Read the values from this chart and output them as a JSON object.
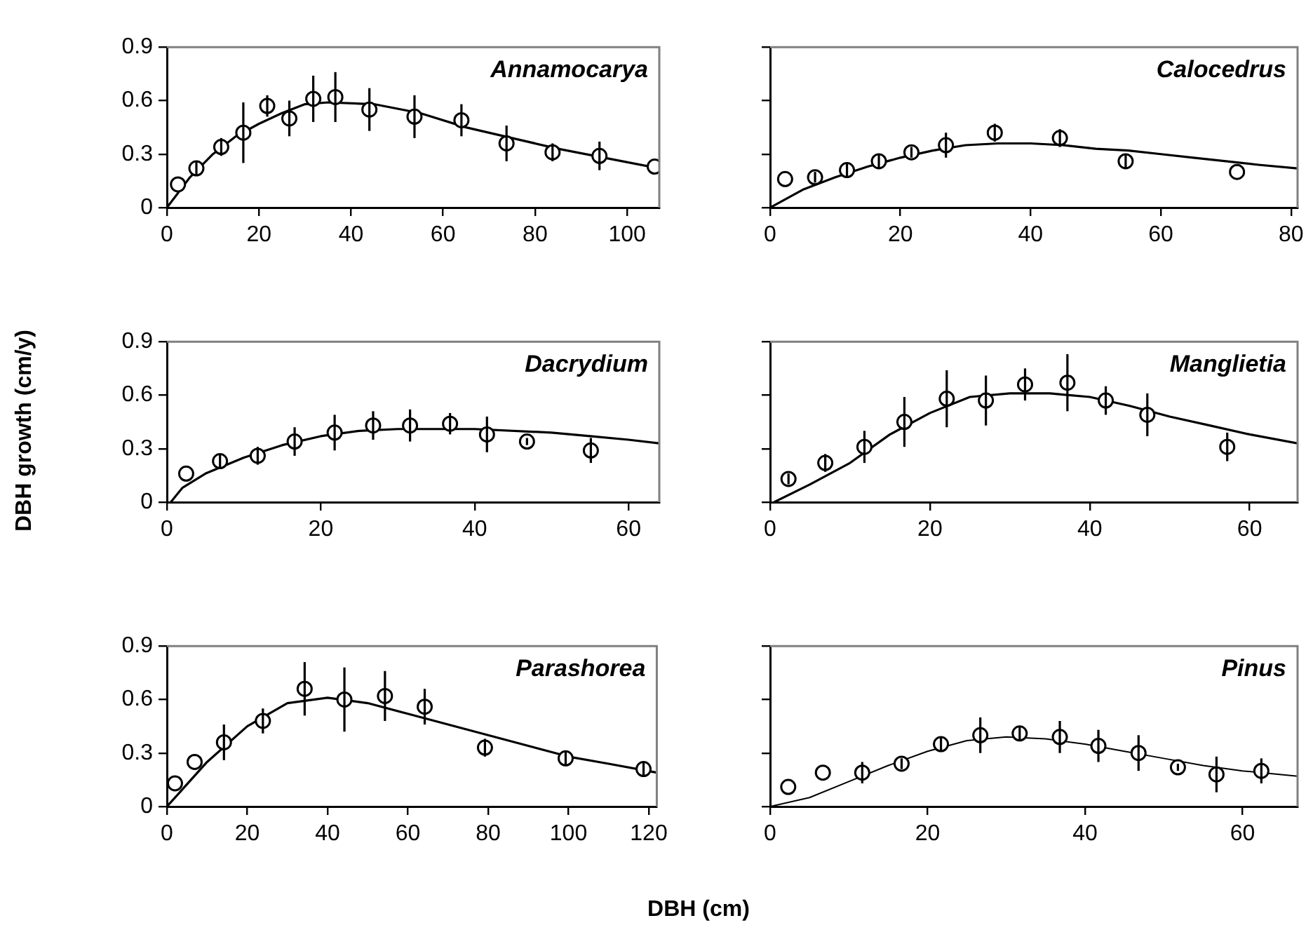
{
  "chart_data": [
    {
      "type": "scatter",
      "title": "Annamocarya",
      "xlim": [
        0,
        107
      ],
      "xticks": [
        0,
        20,
        40,
        60,
        80,
        100
      ],
      "ylim": [
        0,
        0.9
      ],
      "yticks": [
        0,
        0.3,
        0.6,
        0.9
      ],
      "grid": false,
      "legend": false,
      "series": [
        {
          "type": "scatter",
          "marker": "circle",
          "color": "#000000",
          "x": [
            2.4,
            6.4,
            11.8,
            16.6,
            21.8,
            26.6,
            31.8,
            36.6,
            44,
            53.8,
            64,
            73.8,
            83.8,
            94,
            106
          ],
          "values": [
            0.13,
            0.22,
            0.34,
            0.42,
            0.57,
            0.5,
            0.61,
            0.62,
            0.55,
            0.51,
            0.49,
            0.36,
            0.31,
            0.29,
            0.23
          ],
          "errors": [
            null,
            0.04,
            0.05,
            0.17,
            0.06,
            0.1,
            0.13,
            0.14,
            0.12,
            0.12,
            0.09,
            0.1,
            0.05,
            0.08,
            null
          ]
        },
        {
          "type": "line",
          "marker": "none",
          "color": "#000000",
          "x": [
            0,
            5,
            10,
            15,
            20,
            25,
            30,
            35,
            45,
            55,
            65,
            75,
            85,
            95,
            107
          ],
          "values": [
            0,
            0.17,
            0.3,
            0.4,
            0.47,
            0.53,
            0.58,
            0.59,
            0.58,
            0.53,
            0.45,
            0.39,
            0.33,
            0.28,
            0.22
          ]
        }
      ]
    },
    {
      "type": "scatter",
      "title": "Calocedrus",
      "xlim": [
        0,
        81
      ],
      "xticks": [
        0,
        20,
        40,
        60,
        80
      ],
      "ylim": [
        0,
        0.9
      ],
      "yticks": [
        0,
        0.3,
        0.6,
        0.9
      ],
      "tick_labels": "x",
      "grid": false,
      "legend": false,
      "series": [
        {
          "type": "scatter",
          "marker": "circle",
          "color": "#000000",
          "x": [
            2.3,
            6.9,
            11.8,
            16.7,
            21.7,
            27,
            34.5,
            44.5,
            54.6,
            71.7
          ],
          "values": [
            0.16,
            0.17,
            0.21,
            0.26,
            0.31,
            0.35,
            0.42,
            0.39,
            0.26,
            0.2
          ],
          "errors": [
            null,
            0.03,
            0.04,
            0.04,
            0.03,
            0.07,
            0.05,
            0.05,
            0.04,
            null
          ]
        },
        {
          "type": "line",
          "marker": "none",
          "color": "#000000",
          "x": [
            0,
            5,
            10,
            15,
            20,
            25,
            30,
            35,
            40,
            45,
            50,
            55,
            60,
            65,
            70,
            75,
            81
          ],
          "values": [
            0,
            0.1,
            0.17,
            0.23,
            0.28,
            0.32,
            0.35,
            0.36,
            0.36,
            0.35,
            0.33,
            0.32,
            0.3,
            0.28,
            0.26,
            0.24,
            0.22
          ]
        }
      ]
    },
    {
      "type": "scatter",
      "title": "Dacrydium",
      "ylabel": "DBH growth (cm/y)",
      "xlim": [
        0,
        64
      ],
      "xticks": [
        0,
        20,
        40,
        60
      ],
      "ylim": [
        0,
        0.9
      ],
      "yticks": [
        0,
        0.3,
        0.6,
        0.9
      ],
      "grid": false,
      "legend": false,
      "series": [
        {
          "type": "scatter",
          "marker": "circle",
          "color": "#000000",
          "x": [
            2.5,
            6.9,
            11.8,
            16.6,
            21.8,
            26.8,
            31.6,
            36.8,
            41.6,
            46.8,
            55.1
          ],
          "values": [
            0.16,
            0.23,
            0.26,
            0.34,
            0.39,
            0.43,
            0.43,
            0.44,
            0.38,
            0.34,
            0.29
          ],
          "errors": [
            null,
            0.04,
            0.05,
            0.08,
            0.1,
            0.08,
            0.09,
            0.06,
            0.1,
            0.02,
            0.07
          ]
        },
        {
          "type": "line",
          "marker": "none",
          "color": "#000000",
          "x": [
            0.5,
            2,
            5,
            10,
            15,
            20,
            25,
            30,
            40,
            50,
            55,
            60,
            64
          ],
          "values": [
            0,
            0.08,
            0.16,
            0.25,
            0.32,
            0.37,
            0.4,
            0.41,
            0.41,
            0.39,
            0.37,
            0.35,
            0.33
          ]
        }
      ]
    },
    {
      "type": "scatter",
      "title": "Manglietia",
      "xlim": [
        0,
        66
      ],
      "xticks": [
        0,
        20,
        40,
        60
      ],
      "ylim": [
        0,
        0.9
      ],
      "yticks": [
        0,
        0.3,
        0.6,
        0.9
      ],
      "tick_labels": "x",
      "grid": false,
      "legend": false,
      "series": [
        {
          "type": "scatter",
          "marker": "circle",
          "color": "#000000",
          "x": [
            2.3,
            6.9,
            11.8,
            16.8,
            22.1,
            27,
            31.9,
            37.2,
            42,
            47.2,
            57.2
          ],
          "values": [
            0.13,
            0.22,
            0.31,
            0.45,
            0.58,
            0.57,
            0.66,
            0.67,
            0.57,
            0.49,
            0.31
          ],
          "errors": [
            0.03,
            0.05,
            0.09,
            0.14,
            0.16,
            0.14,
            0.09,
            0.16,
            0.08,
            0.12,
            0.08
          ]
        },
        {
          "type": "line",
          "marker": "none",
          "color": "#000000",
          "x": [
            0.5,
            5,
            10,
            15,
            20,
            25,
            30,
            35,
            40,
            45,
            50,
            55,
            60,
            66
          ],
          "values": [
            0,
            0.1,
            0.22,
            0.38,
            0.5,
            0.59,
            0.61,
            0.61,
            0.59,
            0.54,
            0.48,
            0.43,
            0.38,
            0.33
          ]
        }
      ]
    },
    {
      "type": "scatter",
      "title": "Parashorea",
      "xlabel": "DBH (cm)",
      "xlim": [
        0,
        122
      ],
      "xticks": [
        0,
        20,
        40,
        60,
        80,
        100,
        120
      ],
      "ylim": [
        0,
        0.9
      ],
      "yticks": [
        0,
        0.3,
        0.6,
        0.9
      ],
      "grid": false,
      "legend": false,
      "series": [
        {
          "type": "scatter",
          "marker": "circle",
          "color": "#000000",
          "x": [
            2,
            6.9,
            14.2,
            23.9,
            34.3,
            44.2,
            54.3,
            64.2,
            79.2,
            99.3,
            118.7
          ],
          "values": [
            0.13,
            0.25,
            0.36,
            0.48,
            0.66,
            0.6,
            0.62,
            0.56,
            0.33,
            0.27,
            0.21
          ],
          "errors": [
            null,
            null,
            0.1,
            0.07,
            0.15,
            0.18,
            0.14,
            0.1,
            0.05,
            0.04,
            0.04
          ]
        },
        {
          "type": "line",
          "marker": "none",
          "color": "#000000",
          "x": [
            0,
            10,
            20,
            30,
            40,
            50,
            60,
            70,
            80,
            90,
            100,
            110,
            122
          ],
          "values": [
            0,
            0.25,
            0.45,
            0.58,
            0.61,
            0.58,
            0.52,
            0.46,
            0.4,
            0.34,
            0.28,
            0.24,
            0.19
          ]
        }
      ]
    },
    {
      "type": "scatter",
      "title": "Pinus",
      "xlim": [
        0,
        67
      ],
      "xticks": [
        0,
        20,
        40,
        60
      ],
      "ylim": [
        0,
        0.9
      ],
      "yticks": [
        0,
        0.3,
        0.6,
        0.9
      ],
      "tick_labels": "x",
      "grid": false,
      "legend": false,
      "series": [
        {
          "type": "scatter",
          "marker": "circle",
          "color": "#000000",
          "x": [
            2.3,
            6.7,
            11.7,
            16.7,
            21.7,
            26.7,
            31.7,
            36.8,
            41.7,
            46.8,
            51.8,
            56.7,
            62.4
          ],
          "values": [
            0.11,
            0.19,
            0.19,
            0.24,
            0.35,
            0.4,
            0.41,
            0.39,
            0.34,
            0.3,
            0.22,
            0.18,
            0.2
          ],
          "errors": [
            null,
            null,
            0.06,
            0.03,
            0.04,
            0.1,
            0.04,
            0.09,
            0.09,
            0.1,
            0.02,
            0.1,
            0.07
          ]
        },
        {
          "type": "line",
          "marker": "none",
          "color": "#000000",
          "x": [
            0,
            5,
            10,
            15,
            20,
            25,
            30,
            35,
            40,
            45,
            50,
            55,
            60,
            67
          ],
          "values": [
            0,
            0.05,
            0.14,
            0.23,
            0.31,
            0.37,
            0.39,
            0.38,
            0.35,
            0.31,
            0.27,
            0.23,
            0.2,
            0.17
          ]
        }
      ]
    }
  ]
}
